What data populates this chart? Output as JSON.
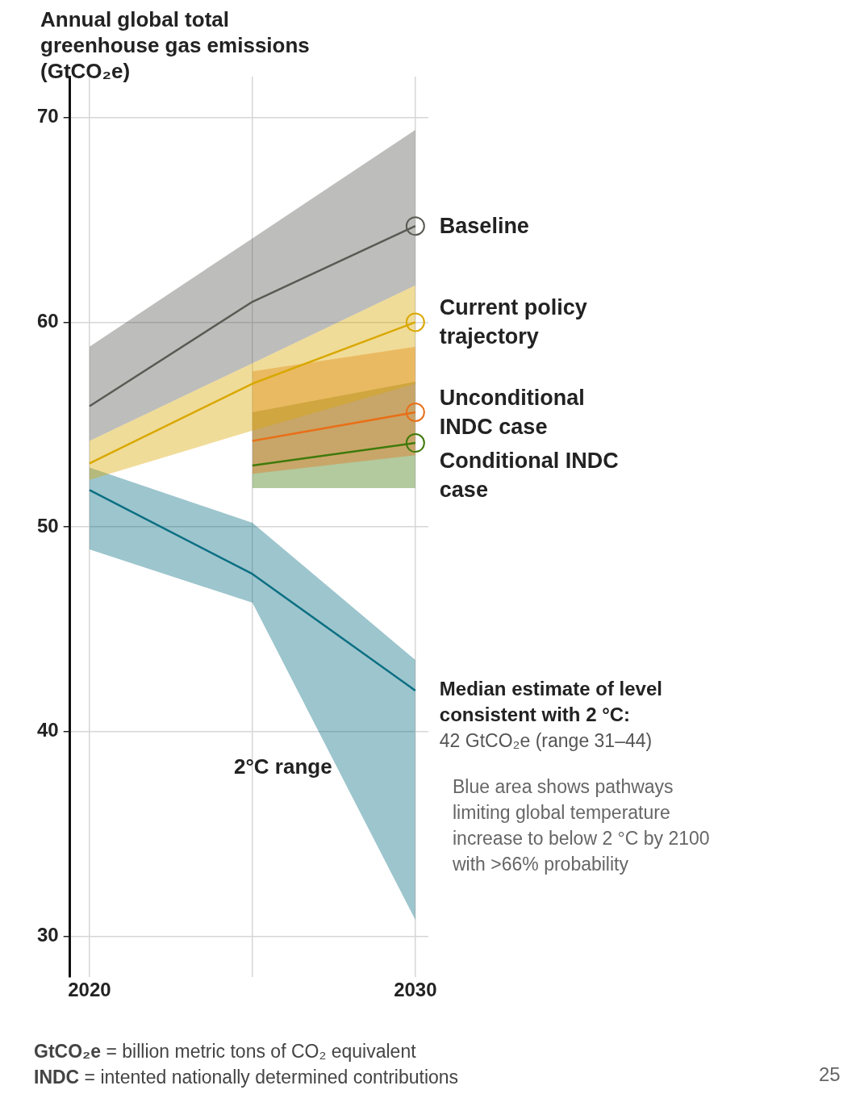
{
  "chart_data": {
    "type": "line",
    "title": "Annual global total greenhouse gas emissions (GtCO₂e)",
    "x": [
      2020,
      2025,
      2030
    ],
    "xlim": [
      2019.4,
      2030.4
    ],
    "xticks": [
      2020,
      {
        "value": 2025,
        "label": null
      },
      2030
    ],
    "ylim": [
      28,
      72
    ],
    "yticks": [
      30,
      40,
      50,
      60,
      70
    ],
    "grid": true,
    "legend": false,
    "series": [
      {
        "name": "Baseline",
        "color": "#5a5a54",
        "values": [
          55.9,
          61.0,
          64.7
        ],
        "lower": [
          54.2,
          58.0,
          61.8
        ],
        "upper": [
          58.8,
          64.1,
          69.4
        ]
      },
      {
        "name": "Current policy trajectory",
        "color": "#d9a800",
        "values": [
          53.1,
          57.0,
          60.0
        ],
        "lower": [
          52.3,
          54.7,
          57.0
        ],
        "upper": [
          54.2,
          58.0,
          61.8
        ]
      },
      {
        "name": "Unconditional INDC case",
        "color": "#e8701a",
        "values": [
          null,
          54.2,
          55.6
        ],
        "lower": [
          null,
          52.6,
          53.5
        ],
        "upper": [
          null,
          57.6,
          58.8
        ]
      },
      {
        "name": "Conditional INDC case",
        "color": "#3f7a0c",
        "values": [
          null,
          53.0,
          54.1
        ],
        "lower": [
          null,
          51.9,
          51.9
        ],
        "upper": [
          null,
          55.6,
          57.1
        ]
      },
      {
        "color": "#0b6f83",
        "values": [
          51.8,
          47.7,
          42.0
        ],
        "lower": [
          48.9,
          46.3,
          30.8
        ],
        "upper": [
          52.9,
          50.2,
          43.5
        ]
      }
    ],
    "annotations": [
      {
        "text": "Median estimate of level consistent with 2 °C:",
        "x": 2030,
        "y": 42
      },
      {
        "text": "42 GtCO₂e (range 31–44)",
        "x": 2030,
        "y": 42
      },
      "2°C range",
      "Blue area shows pathways limiting global temperature increase to below 2 °C by 2100 with >66% probability",
      "GtCO₂e = billion metric tons of CO₂ equivalent",
      "INDC = intented nationally determined contributions",
      "25"
    ]
  }
}
